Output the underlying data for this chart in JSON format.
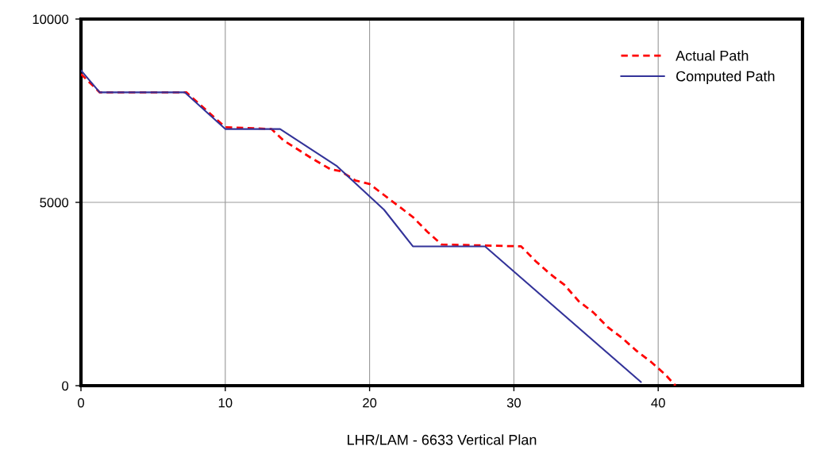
{
  "chart_data": {
    "type": "line",
    "xlabel": "LHR/LAM - 6633 Vertical Plan",
    "xlim": [
      0,
      50
    ],
    "ylim": [
      0,
      10000
    ],
    "xticks": [
      0,
      10,
      20,
      30,
      40
    ],
    "yticks": [
      0,
      5000,
      10000
    ],
    "grid": true,
    "legend": "top right",
    "series": [
      {
        "name": "Actual Path",
        "color": "#ff0000",
        "line_style": "dashed",
        "x": [
          0,
          1.3,
          7.3,
          10,
          13.2,
          14,
          16,
          17.3,
          18,
          19,
          20,
          21,
          22,
          23,
          24,
          25,
          30.5,
          31.5,
          32.5,
          33.5,
          34.5,
          35.5,
          36.5,
          37.5,
          38.5,
          39.5,
          40.5,
          41.2
        ],
        "values": [
          8500,
          8000,
          8000,
          7050,
          7000,
          6700,
          6200,
          5900,
          5850,
          5600,
          5500,
          5200,
          4900,
          4600,
          4200,
          3850,
          3800,
          3400,
          3050,
          2750,
          2300,
          2000,
          1600,
          1300,
          950,
          650,
          300,
          0
        ]
      },
      {
        "name": "Computed Path",
        "color": "#333399",
        "line_style": "solid",
        "x": [
          0,
          1.3,
          7.2,
          10,
          13.8,
          17.7,
          21,
          23,
          28,
          38.8
        ],
        "values": [
          8600,
          8000,
          8000,
          7000,
          7000,
          6000,
          4800,
          3800,
          3800,
          100
        ]
      }
    ]
  }
}
